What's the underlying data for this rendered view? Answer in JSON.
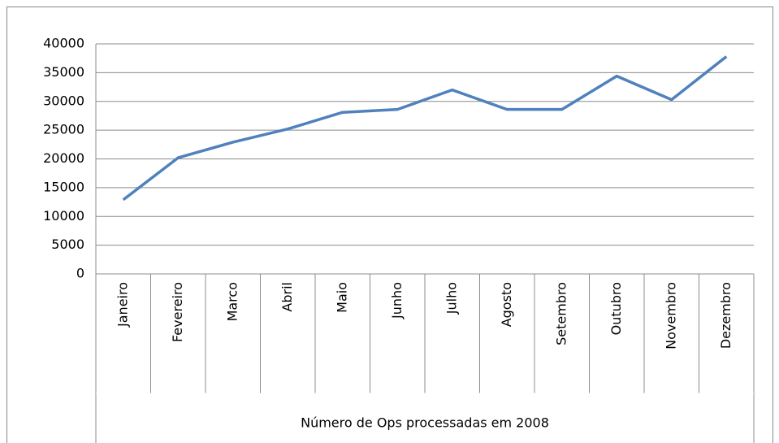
{
  "chart_data": {
    "type": "line",
    "x_label": "Número de Ops processadas em 2008",
    "categories": [
      "Janeiro",
      "Fevereiro",
      "Marco",
      "Abril",
      "Maio",
      "Junho",
      "Julho",
      "Agosto",
      "Setembro",
      "Outubro",
      "Novembro",
      "Dezembro"
    ],
    "series": [
      {
        "color": "#4f81bd",
        "values": [
          12900,
          20200,
          22900,
          25200,
          28100,
          28600,
          32000,
          28600,
          28600,
          34400,
          30300,
          37800
        ]
      }
    ],
    "ylim": [
      0,
      40000
    ],
    "yticks": [
      0,
      5000,
      10000,
      15000,
      20000,
      25000,
      30000,
      35000,
      40000
    ],
    "grid": true
  }
}
